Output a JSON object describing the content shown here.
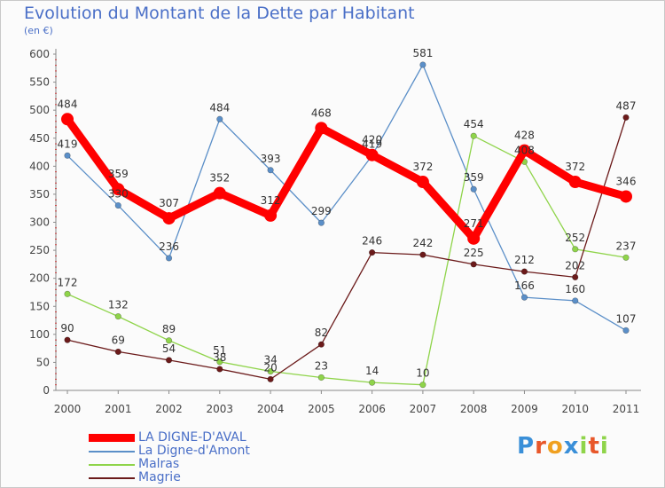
{
  "chart_data": {
    "type": "line",
    "title": "Evolution du Montant de la Dette par Habitant",
    "subtitle": "(en €)",
    "x": [
      "2000",
      "2001",
      "2002",
      "2003",
      "2004",
      "2005",
      "2006",
      "2007",
      "2008",
      "2009",
      "2010",
      "2011"
    ],
    "ylim": [
      0,
      600
    ],
    "yticks": [
      0,
      50,
      100,
      150,
      200,
      250,
      300,
      350,
      400,
      450,
      500,
      550,
      600
    ],
    "grid": false,
    "legend_placement": "bottom-left",
    "series": [
      {
        "name": "LA DIGNE-D'AVAL",
        "color": "#ff0000",
        "emphasis": true,
        "values": [
          484,
          359,
          307,
          352,
          312,
          468,
          420,
          372,
          271,
          428,
          372,
          346
        ]
      },
      {
        "name": "La Digne-d'Amont",
        "color": "#5b8fc8",
        "values": [
          419,
          330,
          236,
          484,
          393,
          299,
          419,
          581,
          359,
          166,
          160,
          107
        ]
      },
      {
        "name": "Malras",
        "color": "#8fd44a",
        "values": [
          172,
          132,
          89,
          51,
          34,
          23,
          14,
          10,
          454,
          408,
          252,
          237
        ]
      },
      {
        "name": "Magrie",
        "color": "#6b1a1a",
        "values": [
          90,
          69,
          54,
          38,
          20,
          82,
          246,
          242,
          225,
          212,
          202,
          487
        ]
      }
    ]
  },
  "brand": {
    "letters": [
      "P",
      "r",
      "o",
      "x",
      "i",
      "t",
      "i"
    ],
    "colors": [
      "#3a8fd8",
      "#e8572a",
      "#f0a020",
      "#3a8fd8",
      "#8fd44a",
      "#e8572a",
      "#8fd44a"
    ]
  }
}
